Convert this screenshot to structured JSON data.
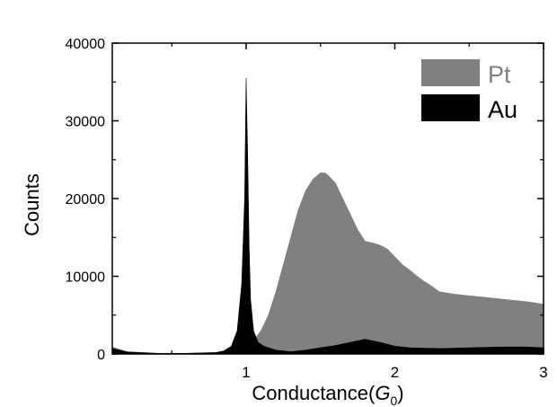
{
  "chart_data": {
    "type": "area",
    "xlabel": "Conductance(",
    "xlabel_var": "G",
    "xlabel_sub": "0",
    "xlabel_close": ")",
    "ylabel": "Counts",
    "xlim": [
      0.1,
      3.0
    ],
    "ylim": [
      0,
      40000
    ],
    "x_ticks": [
      1,
      2,
      3
    ],
    "x_tick_labels": [
      "1",
      "2",
      "3"
    ],
    "y_ticks": [
      0,
      10000,
      20000,
      30000,
      40000
    ],
    "y_tick_labels": [
      "0",
      "10000",
      "20000",
      "30000",
      "40000"
    ],
    "grid": false,
    "legend_position": "top-right",
    "series": [
      {
        "name": "Pt",
        "color": "#808080",
        "x": [
          0.1,
          0.2,
          0.4,
          0.6,
          0.8,
          0.9,
          0.95,
          1.0,
          1.03,
          1.06,
          1.1,
          1.15,
          1.2,
          1.25,
          1.3,
          1.35,
          1.4,
          1.45,
          1.5,
          1.53,
          1.55,
          1.6,
          1.65,
          1.7,
          1.75,
          1.8,
          1.85,
          1.9,
          1.95,
          2.0,
          2.05,
          2.1,
          2.15,
          2.2,
          2.25,
          2.3,
          2.4,
          2.5,
          2.6,
          2.7,
          2.8,
          2.9,
          3.0
        ],
        "values": [
          900,
          300,
          100,
          100,
          150,
          300,
          700,
          1200,
          1500,
          2000,
          3000,
          5000,
          8000,
          11500,
          15000,
          18500,
          21000,
          22500,
          23300,
          23300,
          23000,
          22000,
          20000,
          18000,
          16000,
          14500,
          14300,
          14000,
          13500,
          12500,
          11500,
          10800,
          10000,
          9300,
          8700,
          8000,
          7700,
          7500,
          7300,
          7100,
          6900,
          6700,
          6400
        ]
      },
      {
        "name": "Au",
        "color": "#000000",
        "x": [
          0.1,
          0.2,
          0.4,
          0.6,
          0.8,
          0.85,
          0.9,
          0.94,
          0.97,
          0.99,
          1.0,
          1.01,
          1.02,
          1.03,
          1.05,
          1.08,
          1.12,
          1.2,
          1.3,
          1.4,
          1.5,
          1.6,
          1.7,
          1.8,
          1.9,
          2.0,
          2.1,
          2.3,
          2.5,
          2.7,
          2.9,
          3.0
        ],
        "values": [
          700,
          250,
          80,
          80,
          200,
          400,
          1000,
          3000,
          9000,
          20000,
          35500,
          26000,
          14000,
          7000,
          3000,
          1500,
          1000,
          500,
          300,
          500,
          800,
          1100,
          1500,
          1900,
          1500,
          1000,
          800,
          700,
          800,
          900,
          900,
          800
        ]
      }
    ]
  }
}
